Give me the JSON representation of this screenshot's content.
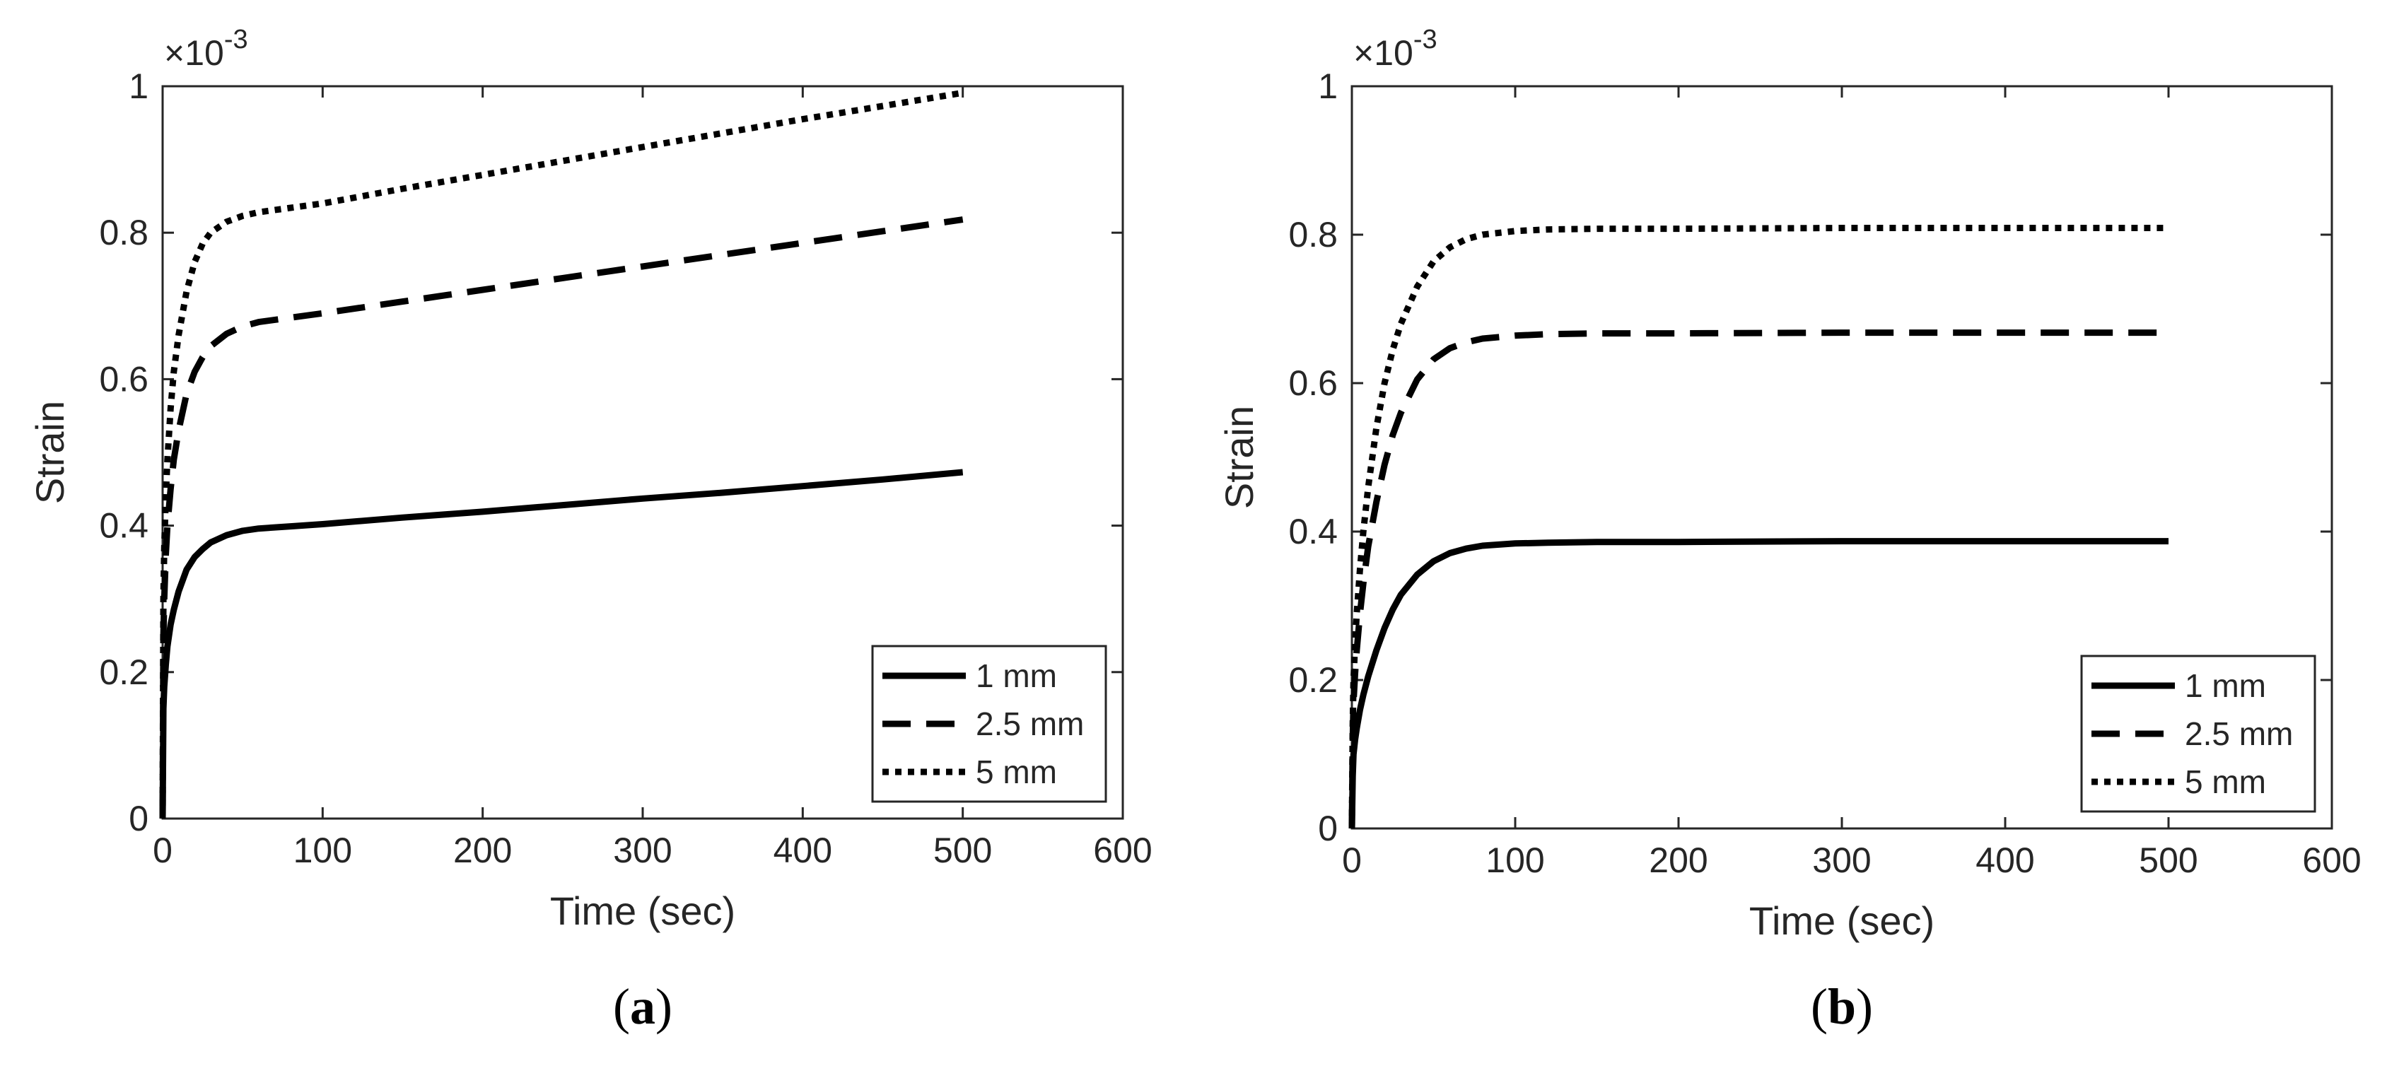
{
  "figure": {
    "panels": [
      "(a)",
      "(b)"
    ]
  },
  "chart_data": [
    {
      "type": "line",
      "panel_label": "(a)",
      "caption_open": "(",
      "caption_letter": "a",
      "caption_close": ")",
      "xlabel": "Time (sec)",
      "ylabel": "Strain",
      "xlim": [
        0,
        600
      ],
      "ylim": [
        0,
        1
      ],
      "x_ticks": [
        "0",
        "100",
        "200",
        "300",
        "400",
        "500",
        "600"
      ],
      "y_ticks": [
        "0",
        "0.2",
        "0.4",
        "0.6",
        "0.8",
        "1"
      ],
      "y_exponent_base": "×10",
      "y_exponent_power": "-3",
      "grid": false,
      "legend_position": "bottom-right",
      "series": [
        {
          "name": "1 mm",
          "style": "solid",
          "x": [
            0,
            0.5,
            1,
            2,
            3,
            5,
            7,
            10,
            15,
            20,
            25,
            30,
            40,
            50,
            60,
            80,
            100,
            150,
            200,
            250,
            300,
            350,
            400,
            450,
            500
          ],
          "y": [
            0,
            0.15,
            0.18,
            0.21,
            0.235,
            0.265,
            0.285,
            0.31,
            0.34,
            0.357,
            0.368,
            0.377,
            0.387,
            0.393,
            0.396,
            0.399,
            0.402,
            0.411,
            0.419,
            0.428,
            0.437,
            0.445,
            0.454,
            0.463,
            0.473
          ]
        },
        {
          "name": "2.5 mm",
          "style": "dashed",
          "x": [
            0,
            0.5,
            1,
            2,
            3,
            5,
            7,
            10,
            15,
            20,
            25,
            30,
            40,
            50,
            60,
            80,
            100,
            150,
            200,
            250,
            300,
            350,
            400,
            450,
            500
          ],
          "y": [
            0,
            0.25,
            0.3,
            0.36,
            0.4,
            0.45,
            0.49,
            0.53,
            0.58,
            0.61,
            0.63,
            0.645,
            0.662,
            0.672,
            0.678,
            0.684,
            0.69,
            0.706,
            0.722,
            0.738,
            0.754,
            0.77,
            0.786,
            0.802,
            0.818
          ]
        },
        {
          "name": "5 mm",
          "style": "dotted",
          "x": [
            0,
            0.5,
            1,
            2,
            3,
            5,
            7,
            10,
            15,
            20,
            25,
            30,
            40,
            50,
            60,
            80,
            100,
            150,
            200,
            250,
            300,
            350,
            400,
            450,
            500
          ],
          "y": [
            0,
            0.3,
            0.37,
            0.44,
            0.49,
            0.56,
            0.61,
            0.66,
            0.72,
            0.76,
            0.785,
            0.8,
            0.815,
            0.823,
            0.828,
            0.834,
            0.84,
            0.86,
            0.879,
            0.898,
            0.917,
            0.936,
            0.955,
            0.973,
            0.991
          ]
        }
      ]
    },
    {
      "type": "line",
      "panel_label": "(b)",
      "caption_open": "(",
      "caption_letter": "b",
      "caption_close": ")",
      "xlabel": "Time (sec)",
      "ylabel": "Strain",
      "xlim": [
        0,
        600
      ],
      "ylim": [
        0,
        1
      ],
      "x_ticks": [
        "0",
        "100",
        "200",
        "300",
        "400",
        "500",
        "600"
      ],
      "y_ticks": [
        "0",
        "0.2",
        "0.4",
        "0.6",
        "0.8",
        "1"
      ],
      "y_exponent_base": "×10",
      "y_exponent_power": "-3",
      "grid": false,
      "legend_position": "bottom-right",
      "series": [
        {
          "name": "1 mm",
          "style": "solid",
          "x": [
            0,
            0.5,
            1,
            2,
            3,
            5,
            7,
            10,
            15,
            20,
            25,
            30,
            40,
            50,
            60,
            70,
            80,
            100,
            120,
            150,
            200,
            300,
            400,
            500
          ],
          "y": [
            0,
            0.07,
            0.1,
            0.12,
            0.135,
            0.16,
            0.18,
            0.205,
            0.24,
            0.27,
            0.295,
            0.315,
            0.342,
            0.36,
            0.371,
            0.377,
            0.381,
            0.384,
            0.385,
            0.386,
            0.386,
            0.387,
            0.387,
            0.387
          ]
        },
        {
          "name": "2.5 mm",
          "style": "dashed",
          "x": [
            0,
            0.5,
            1,
            2,
            3,
            5,
            7,
            10,
            15,
            20,
            25,
            30,
            40,
            50,
            60,
            70,
            80,
            100,
            120,
            150,
            200,
            300,
            400,
            500
          ],
          "y": [
            0,
            0.12,
            0.17,
            0.21,
            0.24,
            0.29,
            0.33,
            0.38,
            0.44,
            0.49,
            0.53,
            0.56,
            0.605,
            0.632,
            0.647,
            0.655,
            0.66,
            0.664,
            0.666,
            0.667,
            0.667,
            0.668,
            0.668,
            0.668
          ]
        },
        {
          "name": "5 mm",
          "style": "dotted",
          "x": [
            0,
            0.5,
            1,
            2,
            3,
            5,
            7,
            10,
            15,
            20,
            25,
            30,
            40,
            50,
            60,
            70,
            80,
            100,
            120,
            150,
            200,
            300,
            400,
            500
          ],
          "y": [
            0,
            0.14,
            0.2,
            0.25,
            0.29,
            0.35,
            0.4,
            0.46,
            0.54,
            0.6,
            0.645,
            0.68,
            0.73,
            0.764,
            0.783,
            0.794,
            0.8,
            0.805,
            0.807,
            0.808,
            0.808,
            0.809,
            0.809,
            0.809
          ]
        }
      ]
    }
  ]
}
